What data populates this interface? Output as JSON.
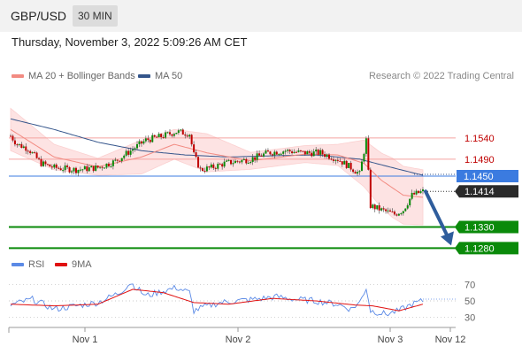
{
  "header": {
    "pair": "GBP/USD",
    "timeframe": "30 MIN"
  },
  "datetime": "Thursday, November 3, 2022 5:09:26 AM CET",
  "legend": {
    "ma20": "MA 20 + Bollinger Bands",
    "ma50": "MA 50",
    "credit": "Research © 2022 Trading Central"
  },
  "rsi_legend": {
    "rsi": "RSI",
    "ma": "9MA"
  },
  "colors": {
    "ma20": "#f28b82",
    "ma50": "#34558b",
    "resistance": "#f5a3a0",
    "pivot": "#3b7be0",
    "support": "#0a8a0a",
    "candle_up": "#0a8a0a",
    "candle_down": "#c00000",
    "rsi": "#5b8ae6",
    "rsi_ma": "#e01010",
    "arrow": "#2f5d9c"
  },
  "levels": [
    {
      "label": "1.1540",
      "type": "resistance"
    },
    {
      "label": "1.1490",
      "type": "resistance"
    },
    {
      "label": "1.1450",
      "type": "pivot"
    },
    {
      "label": "1.1414",
      "type": "last"
    },
    {
      "label": "1.1330",
      "type": "support"
    },
    {
      "label": "1.1280",
      "type": "support"
    }
  ],
  "rsi_ticks": [
    "70",
    "50",
    "30"
  ],
  "x_labels": [
    "Nov 1",
    "Nov 2",
    "Nov 3",
    "Nov 12"
  ],
  "chart_data": {
    "type": "candlestick",
    "price_range": [
      1.126,
      1.164
    ],
    "anchors": [
      [
        0,
        1.1545
      ],
      [
        3,
        1.1525
      ],
      [
        8,
        1.1515
      ],
      [
        14,
        1.148
      ],
      [
        20,
        1.147
      ],
      [
        30,
        1.1465
      ],
      [
        40,
        1.147
      ],
      [
        48,
        1.1485
      ],
      [
        55,
        1.151
      ],
      [
        62,
        1.1535
      ],
      [
        70,
        1.1545
      ],
      [
        76,
        1.1555
      ],
      [
        82,
        1.155
      ],
      [
        84,
        1.15
      ],
      [
        87,
        1.1465
      ],
      [
        92,
        1.147
      ],
      [
        98,
        1.148
      ],
      [
        104,
        1.1485
      ],
      [
        110,
        1.149
      ],
      [
        118,
        1.1505
      ],
      [
        126,
        1.151
      ],
      [
        134,
        1.1505
      ],
      [
        142,
        1.1505
      ],
      [
        150,
        1.149
      ],
      [
        156,
        1.147
      ],
      [
        160,
        1.1455
      ],
      [
        163,
        1.1535
      ],
      [
        165,
        1.138
      ],
      [
        170,
        1.137
      ],
      [
        176,
        1.136
      ],
      [
        180,
        1.137
      ],
      [
        184,
        1.1405
      ],
      [
        189,
        1.1414
      ]
    ],
    "ma20_anchors": [
      [
        0,
        1.156
      ],
      [
        20,
        1.1495
      ],
      [
        40,
        1.1472
      ],
      [
        60,
        1.1495
      ],
      [
        75,
        1.1525
      ],
      [
        90,
        1.1505
      ],
      [
        110,
        1.1486
      ],
      [
        135,
        1.1502
      ],
      [
        150,
        1.15
      ],
      [
        162,
        1.148
      ],
      [
        170,
        1.144
      ],
      [
        180,
        1.1405
      ],
      [
        189,
        1.14
      ]
    ],
    "bollinger_width": [
      [
        0,
        0.005
      ],
      [
        20,
        0.003
      ],
      [
        40,
        0.002
      ],
      [
        60,
        0.004
      ],
      [
        75,
        0.0035
      ],
      [
        90,
        0.0045
      ],
      [
        110,
        0.002
      ],
      [
        135,
        0.002
      ],
      [
        150,
        0.0025
      ],
      [
        162,
        0.0055
      ],
      [
        175,
        0.007
      ],
      [
        189,
        0.0065
      ]
    ],
    "ma50_anchors": [
      [
        0,
        1.1585
      ],
      [
        20,
        1.156
      ],
      [
        40,
        1.153
      ],
      [
        60,
        1.151
      ],
      [
        80,
        1.15
      ],
      [
        100,
        1.1495
      ],
      [
        120,
        1.1498
      ],
      [
        140,
        1.15
      ],
      [
        160,
        1.149
      ],
      [
        175,
        1.147
      ],
      [
        189,
        1.1452
      ]
    ],
    "forecast": {
      "from": 1.1414,
      "to": 1.128
    },
    "rsi_range": [
      20,
      80
    ],
    "rsi_anchors": [
      [
        0,
        45
      ],
      [
        10,
        52
      ],
      [
        20,
        40
      ],
      [
        30,
        44
      ],
      [
        40,
        48
      ],
      [
        50,
        60
      ],
      [
        55,
        72
      ],
      [
        62,
        56
      ],
      [
        70,
        62
      ],
      [
        76,
        66
      ],
      [
        82,
        60
      ],
      [
        84,
        38
      ],
      [
        88,
        42
      ],
      [
        96,
        48
      ],
      [
        104,
        50
      ],
      [
        112,
        52
      ],
      [
        122,
        55
      ],
      [
        130,
        52
      ],
      [
        140,
        50
      ],
      [
        150,
        46
      ],
      [
        156,
        40
      ],
      [
        160,
        48
      ],
      [
        163,
        66
      ],
      [
        165,
        38
      ],
      [
        172,
        34
      ],
      [
        178,
        38
      ],
      [
        184,
        46
      ],
      [
        189,
        50
      ]
    ],
    "rsi_ma_anchors": [
      [
        0,
        46
      ],
      [
        20,
        44
      ],
      [
        40,
        46
      ],
      [
        56,
        64
      ],
      [
        70,
        60
      ],
      [
        84,
        48
      ],
      [
        100,
        46
      ],
      [
        120,
        53
      ],
      [
        140,
        50
      ],
      [
        158,
        45
      ],
      [
        166,
        44
      ],
      [
        178,
        38
      ],
      [
        189,
        46
      ]
    ]
  }
}
